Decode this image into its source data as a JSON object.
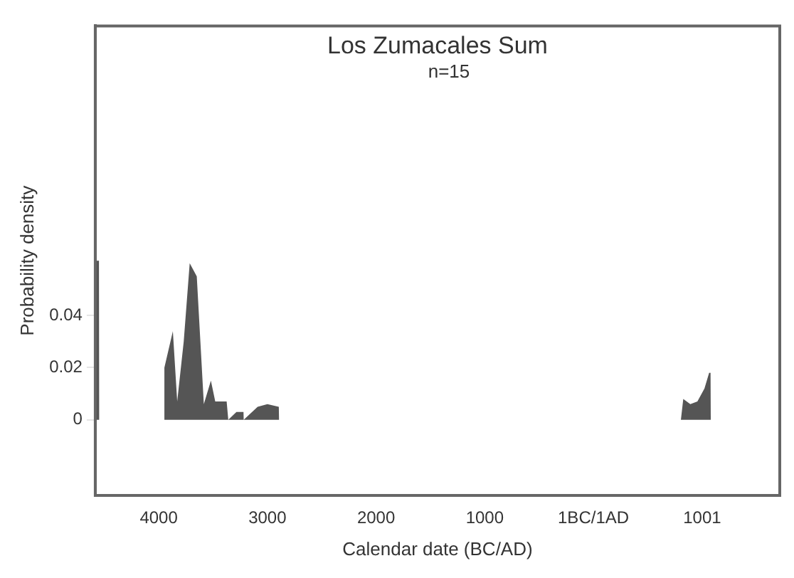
{
  "chart_data": {
    "type": "area",
    "title": "Los Zumacales Sum",
    "subtitle": "n=15",
    "xlabel": "Calendar date (BC/AD)",
    "ylabel": "Probability density",
    "x": [
      -4584,
      -4550,
      -4548,
      -3950,
      -3948,
      -3870,
      -3830,
      -3770,
      -3715,
      -3650,
      -3585,
      -3520,
      -3480,
      -3375,
      -3360,
      -3285,
      -3220,
      -3218,
      -3090,
      -3000,
      -2895,
      -2893,
      805,
      827,
      892,
      957,
      1022,
      1065,
      1078,
      1080
    ],
    "series": [
      {
        "color": "#555555",
        "values": [
          0.061,
          0.061,
          0,
          0,
          0.02,
          0.034,
          0.007,
          0.03,
          0.06,
          0.055,
          0.006,
          0.015,
          0.007,
          0.007,
          0,
          0.003,
          0.003,
          0,
          0.005,
          0.006,
          0.005,
          0,
          0,
          0.008,
          0.006,
          0.007,
          0.012,
          0.018,
          0.018,
          0
        ]
      }
    ],
    "xlim": [
      -4584,
      1715
    ],
    "xticks": [
      {
        "value": -4000,
        "label": "4000"
      },
      {
        "value": -3000,
        "label": "3000"
      },
      {
        "value": -2000,
        "label": "2000"
      },
      {
        "value": -1000,
        "label": "1000"
      },
      {
        "value": 0,
        "label": "1BC/1AD"
      },
      {
        "value": 1001,
        "label": "1001"
      }
    ],
    "ylim": [
      -0.029,
      0.151
    ],
    "yticks": [
      0,
      0.02,
      0.04
    ],
    "grid": false,
    "legend": false
  }
}
